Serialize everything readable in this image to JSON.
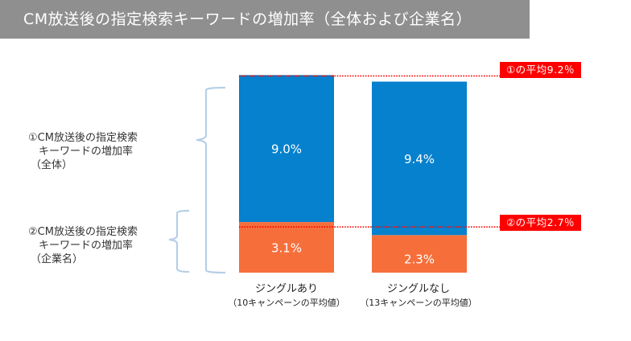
{
  "title": "CM放送後の指定検索キーワードの増加率（全体および企業名）",
  "legend": {
    "overall": {
      "line1": "①CM放送後の指定検索",
      "line2": "キーワードの増加率",
      "line3": "（全体）"
    },
    "company": {
      "line1": "②CM放送後の指定検索",
      "line2": "キーワードの増加率",
      "line3": "（企業名）"
    }
  },
  "badges": {
    "avg_overall": "①の平均9.2％",
    "avg_company": "②の平均2.7％"
  },
  "colors": {
    "overall": "#0581cd",
    "company": "#f66f3b",
    "average_line": "#ff0000",
    "bracket": "#b7cfe6",
    "title_bar": "#8f8f8f"
  },
  "chart_data": {
    "type": "bar",
    "stacked": true,
    "title": "CM放送後の指定検索キーワードの増加率（全体および企業名）",
    "categories": [
      "ジングルあり",
      "ジングルなし"
    ],
    "category_sublabels": [
      "（10キャンペーンの平均値）",
      "（13キャンペーンの平均値）"
    ],
    "series": [
      {
        "name": "②CM放送後の指定検索キーワードの増加率（企業名）",
        "values": [
          3.1,
          2.3
        ],
        "labels": [
          "3.1%",
          "2.3%"
        ]
      },
      {
        "name": "①CM放送後の指定検索キーワードの増加率（全体）",
        "values": [
          9.0,
          9.4
        ],
        "labels": [
          "9.0%",
          "9.4%"
        ]
      }
    ],
    "reference_lines": [
      {
        "label": "①の平均9.2％",
        "value": 9.2,
        "applies_to": "overall"
      },
      {
        "label": "②の平均2.7％",
        "value": 2.7,
        "applies_to": "company"
      }
    ],
    "xlabel": "",
    "ylabel": "",
    "grid": false,
    "legend": "left"
  }
}
